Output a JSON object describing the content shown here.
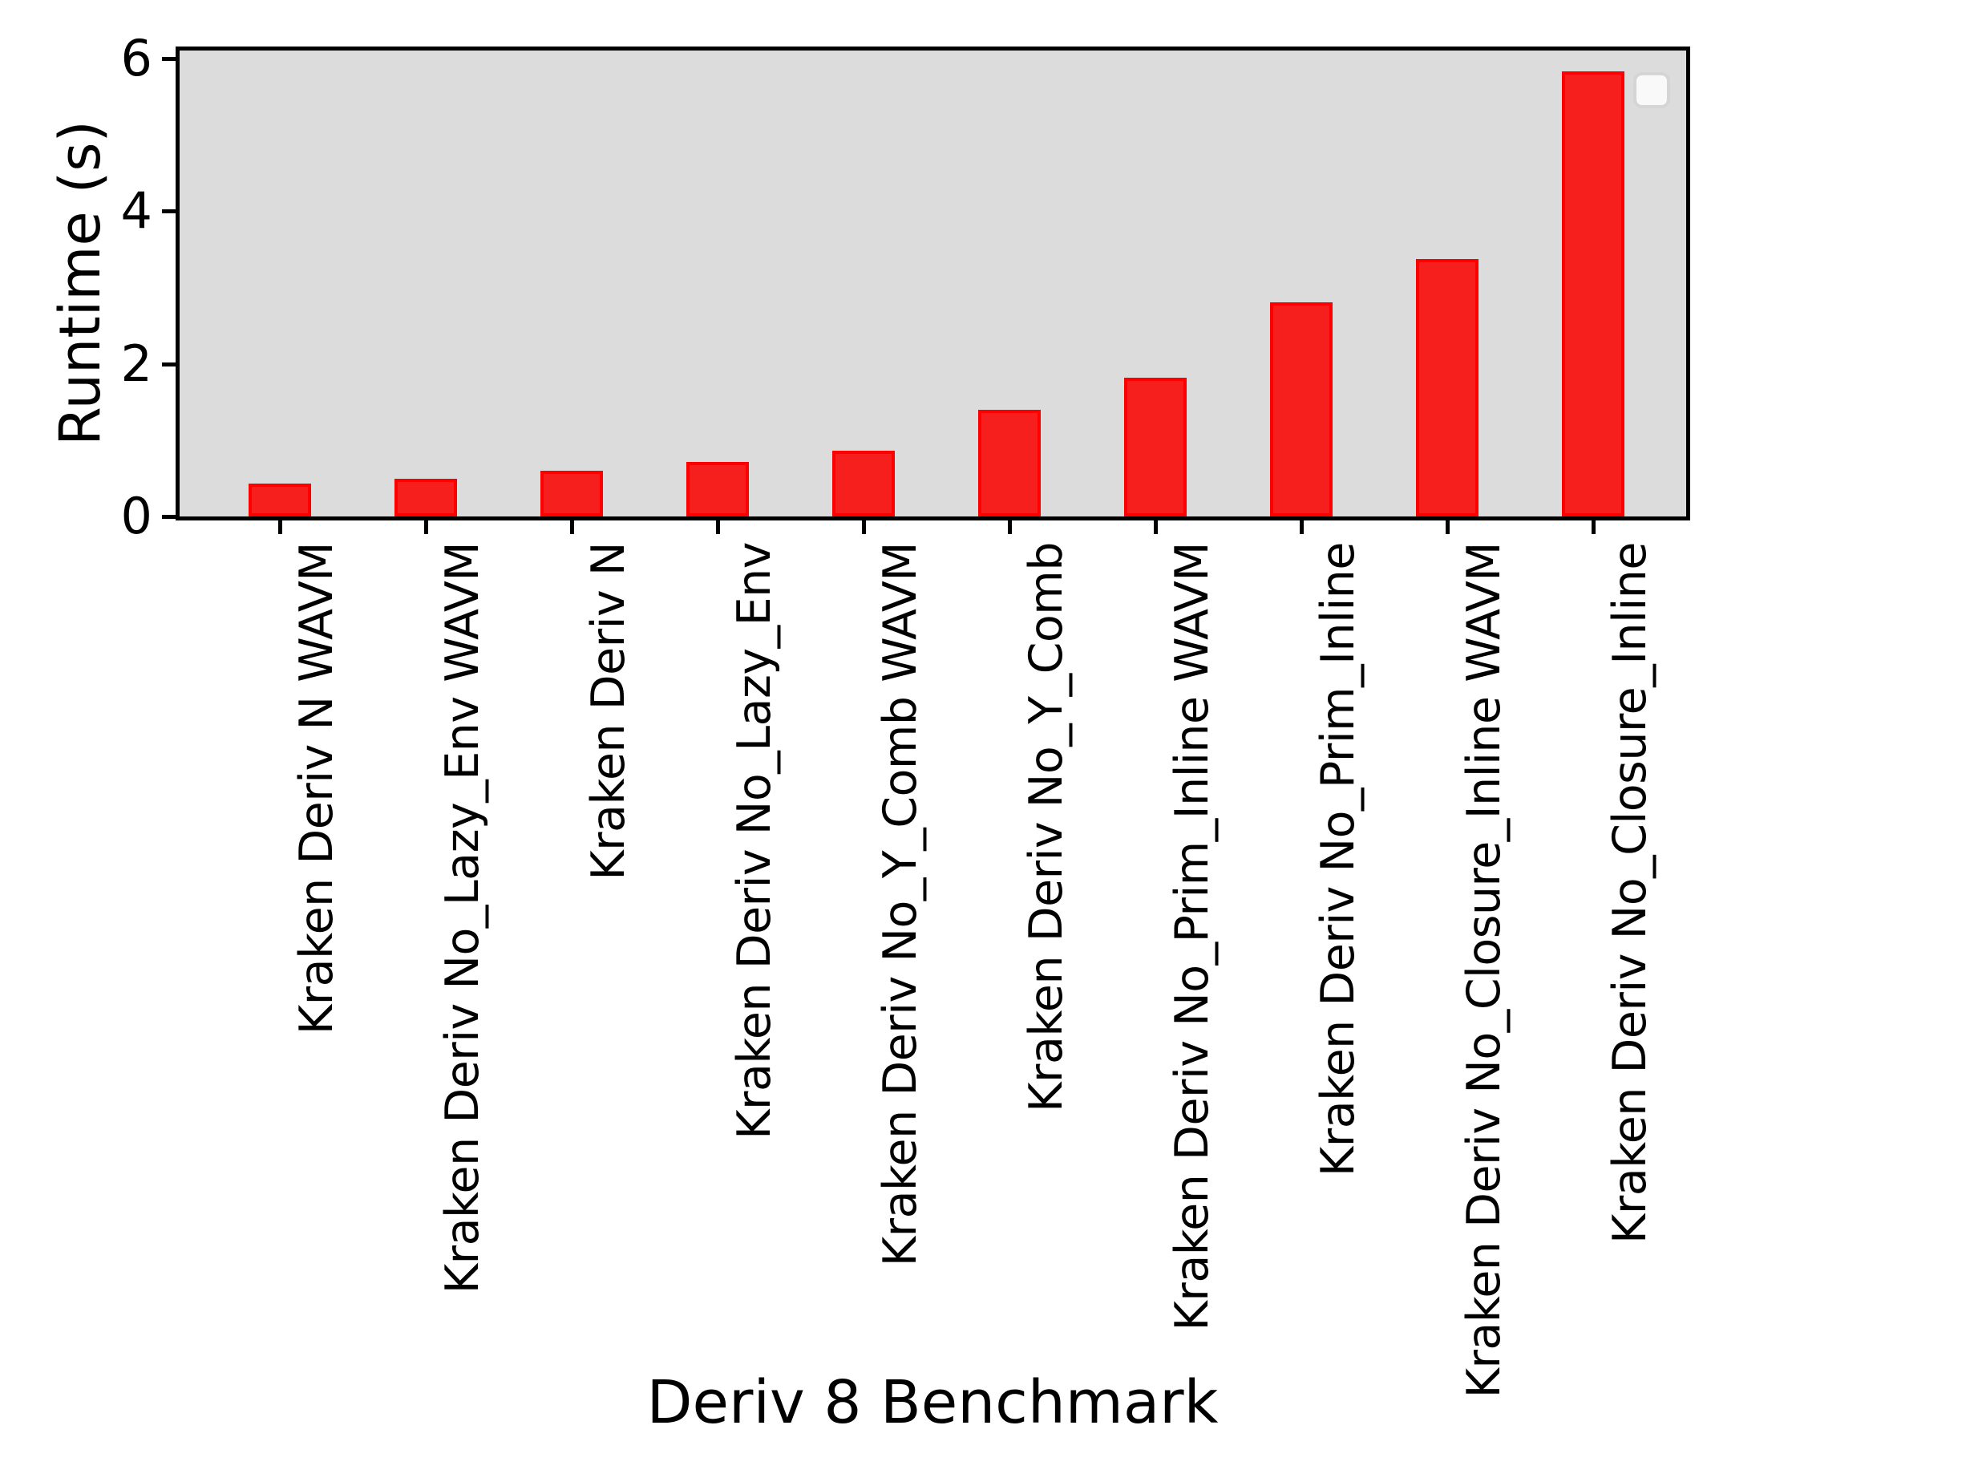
{
  "chart_data": {
    "type": "bar",
    "title": "",
    "xlabel": "Deriv 8 Benchmark",
    "ylabel": "Runtime (s)",
    "categories": [
      "Kraken Deriv N WAVM",
      "Kraken Deriv No_Lazy_Env WAVM",
      "Kraken Deriv N",
      "Kraken Deriv No_Lazy_Env",
      "Kraken Deriv No_Y_Comb WAVM",
      "Kraken Deriv No_Y_Comb",
      "Kraken Deriv No_Prim_Inline WAVM",
      "Kraken Deriv No_Prim_Inline",
      "Kraken Deriv No_Closure_Inline WAVM",
      "Kraken Deriv No_Closure_Inline"
    ],
    "values": [
      0.43,
      0.49,
      0.6,
      0.71,
      0.86,
      1.4,
      1.82,
      2.8,
      3.37,
      5.83
    ],
    "ylim": [
      0,
      6.1
    ],
    "yticks": [
      0,
      2,
      4,
      6
    ],
    "ytick_labels": [
      "0",
      "2",
      "4",
      "6"
    ],
    "grid": false,
    "legend_position": "upper right",
    "legend_entries": [],
    "colors": {
      "bar_fill": "#f71e1e",
      "bar_edge": "#ff0000",
      "plot_background": "#dcdcdc",
      "figure_background": "#ffffff",
      "axis": "#000000",
      "legend_fill": "#f9f9f9",
      "legend_border": "#d5d5d5"
    }
  }
}
